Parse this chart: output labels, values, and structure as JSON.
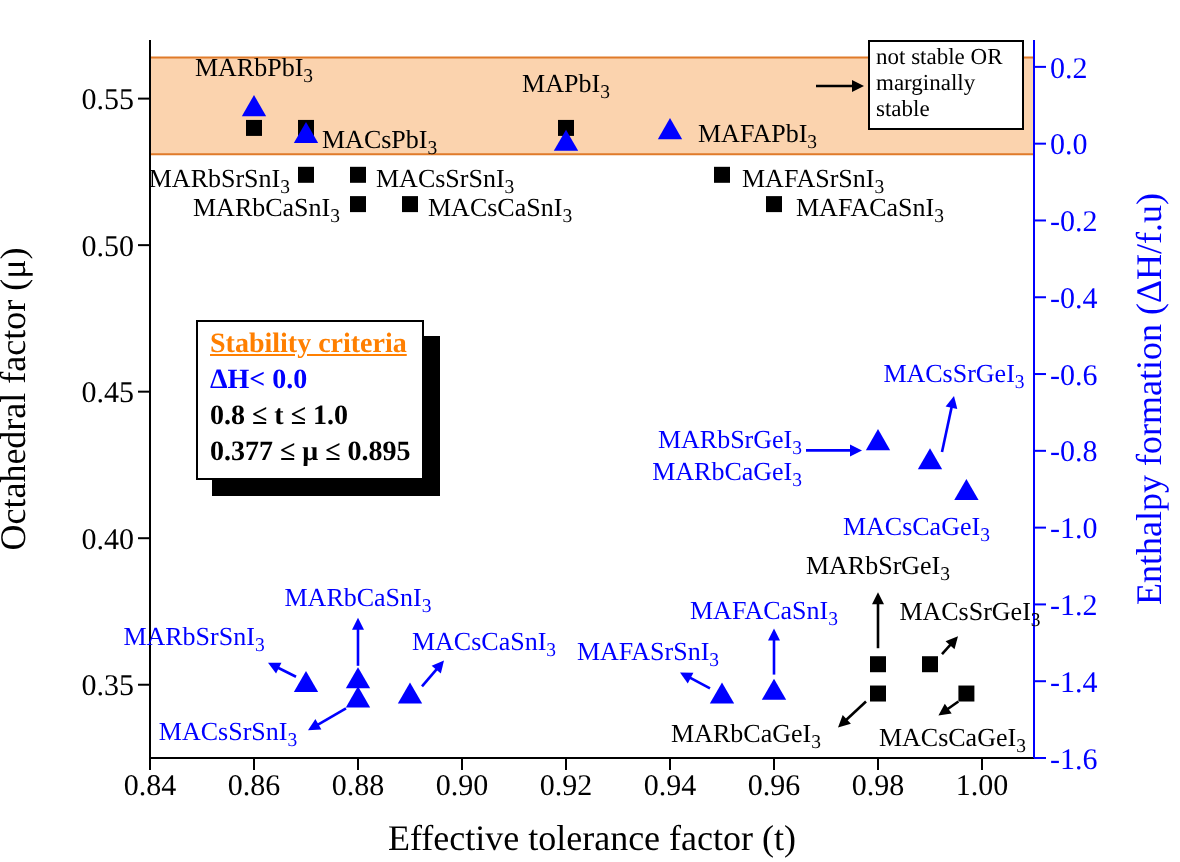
{
  "chart_data": {
    "type": "scatter",
    "xlabel": "Effective tolerance factor (t)",
    "ylabel": "Octahedral factor (μ)",
    "y2label": "Enthalpy formation (ΔH/f.u)",
    "xlim": [
      0.84,
      1.01
    ],
    "xticks": [
      0.84,
      0.86,
      0.88,
      {
        "value": 0.9,
        "label": "0.90"
      },
      0.92,
      0.94,
      0.96,
      0.98,
      {
        "value": 1.0,
        "label": "1.00"
      }
    ],
    "ylim": [
      0.325,
      0.57
    ],
    "yticks": [
      0.35,
      {
        "value": 0.4,
        "label": "0.40"
      },
      0.45,
      {
        "value": 0.5,
        "label": "0.50"
      },
      0.55
    ],
    "y2lim": [
      -1.6,
      0.27
    ],
    "y2ticks": [
      0.2,
      {
        "value": 0,
        "label": "0.0"
      },
      -0.2,
      -0.4,
      -0.6,
      -0.8,
      {
        "value": -1,
        "label": "-1.0"
      },
      -1.2,
      -1.4,
      -1.6
    ],
    "grid": false,
    "legend": false,
    "series": [
      {
        "color": "#000000",
        "marker": "square",
        "x": [
          0.86,
          0.87,
          0.92,
          0.87,
          0.88,
          0.95,
          0.88,
          0.89,
          0.96,
          0.98,
          0.99,
          0.98,
          0.997
        ],
        "values": [
          0.54,
          0.54,
          0.54,
          0.524,
          0.524,
          0.524,
          0.514,
          0.514,
          0.514,
          0.357,
          0.357,
          0.347,
          0.347
        ]
      },
      {
        "color": "#0000ff",
        "marker": "triangle",
        "axis": "y2",
        "x": [
          0.86,
          0.87,
          0.92,
          0.94,
          0.98,
          0.99,
          0.997,
          0.87,
          0.88,
          0.88,
          0.89,
          0.95,
          0.96
        ],
        "values": [
          0.09,
          0.02,
          0.0,
          0.03,
          -0.78,
          -0.83,
          -0.91,
          -1.41,
          -1.4,
          -1.45,
          -1.44,
          -1.44,
          -1.43
        ]
      }
    ],
    "bands": [
      {
        "axis": "y",
        "from": 0.531,
        "to": 0.564,
        "label": "not stable OR marginally stable",
        "color": "#fbd3ae"
      }
    ],
    "annotations": [
      {
        "text": "MARbPbI$_{3}$",
        "x": 0.86,
        "y": 0.54
      },
      {
        "text": "MACsPbI$_{3}$",
        "x": 0.87,
        "y": 0.54
      },
      {
        "text": "MAPbI$_{3}$",
        "x": 0.92,
        "y": 0.54
      },
      {
        "text": "MAFAPbI$_{3}$",
        "x": 0.94,
        "y": 0.54
      },
      {
        "text": "MARbSrSnI$_{3}$",
        "x": 0.87,
        "y": 0.524
      },
      {
        "text": "MACsSrSnI$_{3}$",
        "x": 0.88,
        "y": 0.524
      },
      {
        "text": "MAFASrSnI$_{3}$",
        "x": 0.95,
        "y": 0.524
      },
      {
        "text": "MARbCaSnI$_{3}$",
        "x": 0.88,
        "y": 0.514
      },
      {
        "text": "MACsCaSnI$_{3}$",
        "x": 0.89,
        "y": 0.514
      },
      {
        "text": "MAFACaSnI$_{3}$",
        "x": 0.96,
        "y": 0.514
      },
      {
        "text": "MARbSrGeI$_{3}$",
        "x": 0.98,
        "y": 0.432
      },
      {
        "text": "MARbCaGeI$_{3}$",
        "x": 0.98,
        "y": 0.432
      },
      {
        "text": "MACsSrGeI$_{3}$",
        "x": 0.99,
        "y": 0.426
      },
      {
        "text": "MACsCaGeI$_{3}$",
        "x": 0.997,
        "y": 0.416
      },
      {
        "text": "MARbSrGeI$_{3}$",
        "x": 0.98,
        "y": 0.357
      },
      {
        "text": "MACsSrGeI$_{3}$",
        "x": 0.99,
        "y": 0.357
      },
      {
        "text": "MARbCaGeI$_{3}$",
        "x": 0.98,
        "y": 0.347
      },
      {
        "text": "MACsCaGeI$_{3}$",
        "x": 0.997,
        "y": 0.347
      },
      {
        "text": "MARbSrSnI$_{3}$",
        "x": 0.87,
        "y": 0.35
      },
      {
        "text": "MARbCaSnI$_{3}$",
        "x": 0.88,
        "y": 0.351
      },
      {
        "text": "MACsSrSnI$_{3}$",
        "x": 0.88,
        "y": 0.344
      },
      {
        "text": "MACsCaSnI$_{3}$",
        "x": 0.89,
        "y": 0.346
      },
      {
        "text": "MAFASrSnI$_{3}$",
        "x": 0.95,
        "y": 0.346
      },
      {
        "text": "MAFACaSnI$_{3}$",
        "x": 0.96,
        "y": 0.348
      },
      "Stability criteria",
      "ΔH< 0.0",
      "0.8 ≤ t ≤ 1.0",
      "0.377 ≤ μ ≤ 0.895"
    ]
  }
}
